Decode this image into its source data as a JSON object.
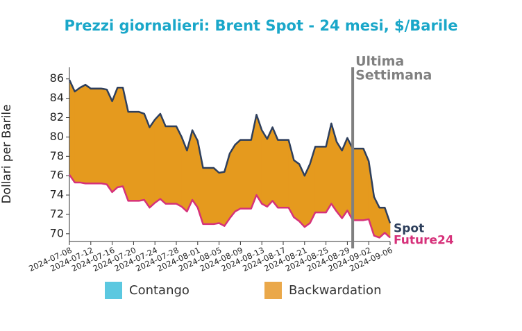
{
  "chart_data": {
    "type": "line",
    "title": "Prezzi giornalieri: Brent Spot - 24 mesi, $/Barile",
    "y_label": "Dollari per Barile",
    "x": [
      "2024-07-08",
      "2024-07-09",
      "2024-07-10",
      "2024-07-11",
      "2024-07-12",
      "2024-07-13",
      "2024-07-14",
      "2024-07-15",
      "2024-07-16",
      "2024-07-17",
      "2024-07-18",
      "2024-07-19",
      "2024-07-20",
      "2024-07-21",
      "2024-07-22",
      "2024-07-23",
      "2024-07-24",
      "2024-07-25",
      "2024-07-26",
      "2024-07-27",
      "2024-07-28",
      "2024-07-29",
      "2024-07-30",
      "2024-07-31",
      "2024-08-01",
      "2024-08-02",
      "2024-08-03",
      "2024-08-04",
      "2024-08-05",
      "2024-08-06",
      "2024-08-07",
      "2024-08-08",
      "2024-08-09",
      "2024-08-10",
      "2024-08-11",
      "2024-08-12",
      "2024-08-13",
      "2024-08-14",
      "2024-08-15",
      "2024-08-16",
      "2024-08-17",
      "2024-08-18",
      "2024-08-19",
      "2024-08-20",
      "2024-08-21",
      "2024-08-22",
      "2024-08-23",
      "2024-08-24",
      "2024-08-25",
      "2024-08-26",
      "2024-08-27",
      "2024-08-28",
      "2024-08-29",
      "2024-08-30",
      "2024-08-31",
      "2024-09-01",
      "2024-09-02",
      "2024-09-03",
      "2024-09-04",
      "2024-09-05",
      "2024-09-06"
    ],
    "series": [
      {
        "name": "Spot",
        "color": "#2e3f5c",
        "values": [
          85.9,
          84.7,
          85.1,
          85.4,
          85.0,
          85.0,
          85.0,
          84.9,
          83.7,
          85.1,
          85.1,
          82.6,
          82.6,
          82.6,
          82.4,
          81.0,
          81.8,
          82.4,
          81.1,
          81.1,
          81.1,
          80.0,
          78.6,
          80.7,
          79.6,
          76.8,
          76.8,
          76.8,
          76.3,
          76.4,
          78.3,
          79.2,
          79.7,
          79.7,
          79.7,
          82.3,
          80.7,
          79.8,
          81.0,
          79.7,
          79.7,
          79.7,
          77.6,
          77.2,
          76.0,
          77.2,
          79.0,
          79.0,
          79.0,
          81.4,
          79.5,
          78.6,
          79.9,
          78.8,
          78.8,
          78.8,
          77.5,
          73.8,
          72.7,
          72.7,
          71.1
        ]
      },
      {
        "name": "Future24",
        "color": "#d6317a",
        "values": [
          76.1,
          75.3,
          75.3,
          75.2,
          75.2,
          75.2,
          75.2,
          75.1,
          74.3,
          74.8,
          74.9,
          73.4,
          73.4,
          73.4,
          73.5,
          72.7,
          73.2,
          73.6,
          73.1,
          73.1,
          73.1,
          72.8,
          72.3,
          73.5,
          72.7,
          71.0,
          71.0,
          71.0,
          71.1,
          70.8,
          71.6,
          72.3,
          72.6,
          72.6,
          72.6,
          74.0,
          73.1,
          72.8,
          73.4,
          72.7,
          72.7,
          72.7,
          71.7,
          71.3,
          70.7,
          71.1,
          72.2,
          72.2,
          72.2,
          73.1,
          72.3,
          71.6,
          72.4,
          71.4,
          71.4,
          71.4,
          71.5,
          69.8,
          69.6,
          70.1,
          69.6
        ]
      }
    ],
    "fill_legend": [
      {
        "name": "Contango",
        "color": "#5bc8e0"
      },
      {
        "name": "Backwardation",
        "color": "#e59a1e"
      }
    ],
    "xlim": [
      "2024-07-08",
      "2024-09-06"
    ],
    "xticks": [
      "2024-07-08",
      "2024-07-12",
      "2024-07-16",
      "2024-07-20",
      "2024-07-24",
      "2024-07-28",
      "2024-08-01",
      "2024-08-05",
      "2024-08-09",
      "2024-08-13",
      "2024-08-17",
      "2024-08-21",
      "2024-08-25",
      "2024-08-29",
      "2024-09-02",
      "2024-09-06"
    ],
    "ylim": [
      69.2,
      87.2
    ],
    "yticks": [
      70,
      72,
      74,
      76,
      78,
      80,
      82,
      84,
      86
    ],
    "annotation": {
      "x": "2024-08-30",
      "color": "#808080",
      "text": [
        "Ultima",
        "Settimana"
      ]
    }
  }
}
